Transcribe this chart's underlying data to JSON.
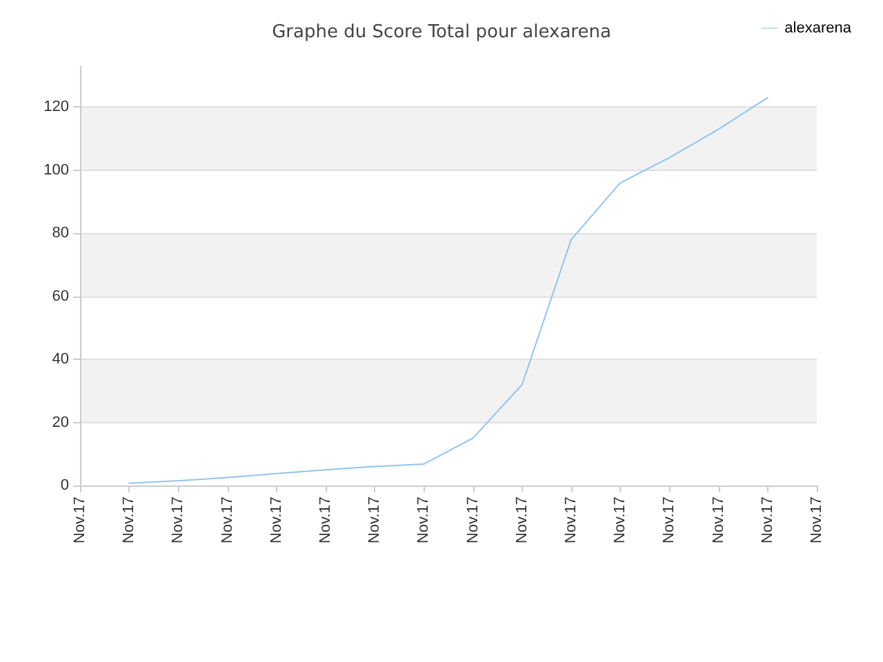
{
  "chart_data": {
    "type": "line",
    "title": "Graphe du Score Total pour alexarena",
    "categories": [
      "Nov.17",
      "Nov.17",
      "Nov.17",
      "Nov.17",
      "Nov.17",
      "Nov.17",
      "Nov.17",
      "Nov.17",
      "Nov.17",
      "Nov.17",
      "Nov.17",
      "Nov.17",
      "Nov.17",
      "Nov.17",
      "Nov.17",
      "Nov.17"
    ],
    "series": [
      {
        "name": "alexarena",
        "color": "#90c4f0",
        "values": [
          null,
          0.7,
          1.5,
          2.5,
          3.8,
          5,
          6,
          6.8,
          15,
          32,
          78,
          96,
          104,
          113,
          123,
          null
        ]
      }
    ],
    "ylim": [
      0,
      133
    ],
    "yticks": [
      0,
      20,
      40,
      60,
      80,
      100,
      120
    ],
    "grid": "y",
    "legend": "top right",
    "marker": "none",
    "line_style": "solid"
  }
}
